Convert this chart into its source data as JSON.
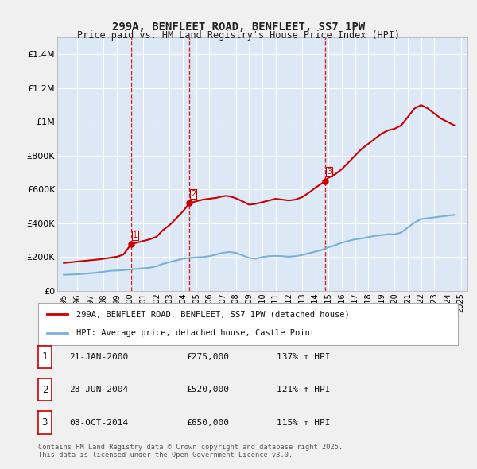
{
  "title1": "299A, BENFLEET ROAD, BENFLEET, SS7 1PW",
  "title2": "Price paid vs. HM Land Registry's House Price Index (HPI)",
  "xlabel": "",
  "ylabel": "",
  "ylim": [
    0,
    1500000
  ],
  "background_color": "#e8f0f8",
  "plot_bg_color": "#dce8f5",
  "grid_color": "#ffffff",
  "red_color": "#cc0000",
  "blue_color": "#7ab0d4",
  "sale_dates_num": [
    2000.06,
    2004.49,
    2014.77
  ],
  "sale_labels": [
    "1",
    "2",
    "3"
  ],
  "legend_line1": "299A, BENFLEET ROAD, BENFLEET, SS7 1PW (detached house)",
  "legend_line2": "HPI: Average price, detached house, Castle Point",
  "table_entries": [
    {
      "num": "1",
      "date": "21-JAN-2000",
      "price": "£275,000",
      "hpi": "137% ↑ HPI"
    },
    {
      "num": "2",
      "date": "28-JUN-2004",
      "price": "£520,000",
      "hpi": "121% ↑ HPI"
    },
    {
      "num": "3",
      "date": "08-OCT-2014",
      "price": "£650,000",
      "hpi": "115% ↑ HPI"
    }
  ],
  "footer": "Contains HM Land Registry data © Crown copyright and database right 2025.\nThis data is licensed under the Open Government Licence v3.0.",
  "hpi_x": [
    1995.0,
    1995.5,
    1996.0,
    1996.5,
    1997.0,
    1997.5,
    1998.0,
    1998.5,
    1999.0,
    1999.5,
    2000.0,
    2000.5,
    2001.0,
    2001.5,
    2002.0,
    2002.5,
    2003.0,
    2003.5,
    2004.0,
    2004.5,
    2005.0,
    2005.5,
    2006.0,
    2006.5,
    2007.0,
    2007.5,
    2008.0,
    2008.5,
    2009.0,
    2009.5,
    2010.0,
    2010.5,
    2011.0,
    2011.5,
    2012.0,
    2012.5,
    2013.0,
    2013.5,
    2014.0,
    2014.5,
    2015.0,
    2015.5,
    2016.0,
    2016.5,
    2017.0,
    2017.5,
    2018.0,
    2018.5,
    2019.0,
    2019.5,
    2020.0,
    2020.5,
    2021.0,
    2021.5,
    2022.0,
    2022.5,
    2023.0,
    2023.5,
    2024.0,
    2024.5
  ],
  "hpi_y": [
    95000,
    96000,
    98000,
    100000,
    104000,
    108000,
    113000,
    118000,
    120000,
    122000,
    126000,
    130000,
    133000,
    137000,
    145000,
    160000,
    170000,
    180000,
    190000,
    195000,
    198000,
    200000,
    205000,
    215000,
    225000,
    230000,
    225000,
    210000,
    195000,
    190000,
    200000,
    205000,
    207000,
    205000,
    202000,
    205000,
    212000,
    222000,
    232000,
    242000,
    258000,
    270000,
    285000,
    295000,
    305000,
    310000,
    318000,
    325000,
    330000,
    335000,
    335000,
    345000,
    375000,
    405000,
    425000,
    430000,
    435000,
    440000,
    445000,
    450000
  ],
  "price_x": [
    1995.0,
    1995.25,
    1995.5,
    1995.75,
    1996.0,
    1996.25,
    1996.5,
    1996.75,
    1997.0,
    1997.25,
    1997.5,
    1997.75,
    1998.0,
    1998.25,
    1998.5,
    1998.75,
    1999.0,
    1999.25,
    1999.5,
    1999.75,
    2000.06,
    2000.5,
    2001.0,
    2001.5,
    2002.0,
    2002.5,
    2003.0,
    2003.5,
    2004.0,
    2004.49,
    2005.0,
    2005.5,
    2006.0,
    2006.25,
    2006.5,
    2006.75,
    2007.0,
    2007.25,
    2007.5,
    2007.75,
    2008.0,
    2008.5,
    2009.0,
    2009.5,
    2010.0,
    2010.5,
    2011.0,
    2011.5,
    2012.0,
    2012.5,
    2013.0,
    2013.5,
    2014.0,
    2014.77,
    2015.0,
    2015.5,
    2016.0,
    2016.5,
    2017.0,
    2017.5,
    2018.0,
    2018.5,
    2019.0,
    2019.5,
    2020.0,
    2020.5,
    2021.0,
    2021.5,
    2022.0,
    2022.5,
    2023.0,
    2023.5,
    2024.0,
    2024.5
  ],
  "price_y": [
    165000,
    167000,
    169000,
    171000,
    173000,
    175000,
    177000,
    179000,
    181000,
    183000,
    185000,
    187000,
    190000,
    193000,
    196000,
    199000,
    202000,
    208000,
    215000,
    240000,
    275000,
    285000,
    295000,
    305000,
    320000,
    360000,
    390000,
    430000,
    470000,
    520000,
    530000,
    540000,
    545000,
    548000,
    550000,
    555000,
    560000,
    562000,
    560000,
    555000,
    548000,
    530000,
    510000,
    515000,
    525000,
    535000,
    545000,
    540000,
    535000,
    540000,
    555000,
    580000,
    610000,
    650000,
    670000,
    690000,
    720000,
    760000,
    800000,
    840000,
    870000,
    900000,
    930000,
    950000,
    960000,
    980000,
    1030000,
    1080000,
    1100000,
    1080000,
    1050000,
    1020000,
    1000000,
    980000
  ]
}
